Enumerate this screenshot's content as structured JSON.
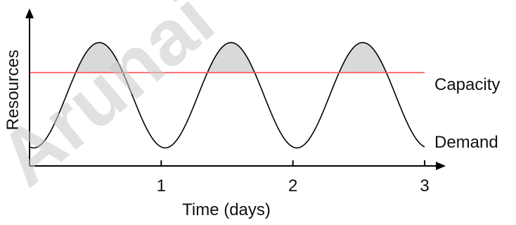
{
  "chart_data": {
    "type": "line",
    "xlabel": "Time (days)",
    "ylabel": "Resources",
    "xlim": [
      0,
      3
    ],
    "ylim": [
      0,
      1
    ],
    "xticks": [
      "1",
      "2",
      "3"
    ],
    "grid": false,
    "series": [
      {
        "name": "Capacity",
        "color": "#ff5050",
        "constant_value": 0.62
      },
      {
        "name": "Demand",
        "color": "#000000",
        "function": "0.47 - 0.35 * cos(2*pi*(x - 0.03))",
        "x_range": [
          0,
          3
        ]
      }
    ],
    "shaded_region": {
      "description": "Demand above Capacity",
      "color": "#d9d9d9"
    }
  },
  "watermark": "Arunai"
}
